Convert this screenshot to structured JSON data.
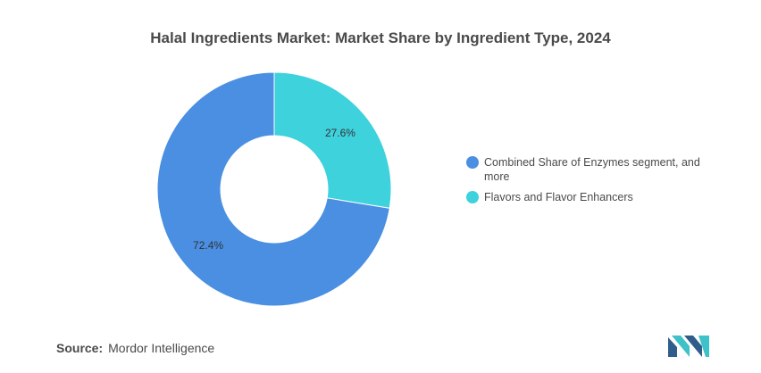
{
  "chart_data": {
    "type": "pie",
    "title": "Halal Ingredients Market: Market Share by Ingredient Type, 2024",
    "series": [
      {
        "name": "Combined Share of Enzymes segment, and more",
        "value": 72.4,
        "label": "72.4%",
        "color": "#4a8fe2"
      },
      {
        "name": "Flavors and Flavor Enhancers",
        "value": 27.6,
        "label": "27.6%",
        "color": "#3ed2dc"
      }
    ],
    "donut": true,
    "legend_position": "right"
  },
  "source": {
    "label": "Source:",
    "text": "Mordor Intelligence"
  },
  "logo": {
    "icon": "mordor-intelligence-logo",
    "colors": [
      "#2f5d8c",
      "#3ec1c9"
    ]
  }
}
